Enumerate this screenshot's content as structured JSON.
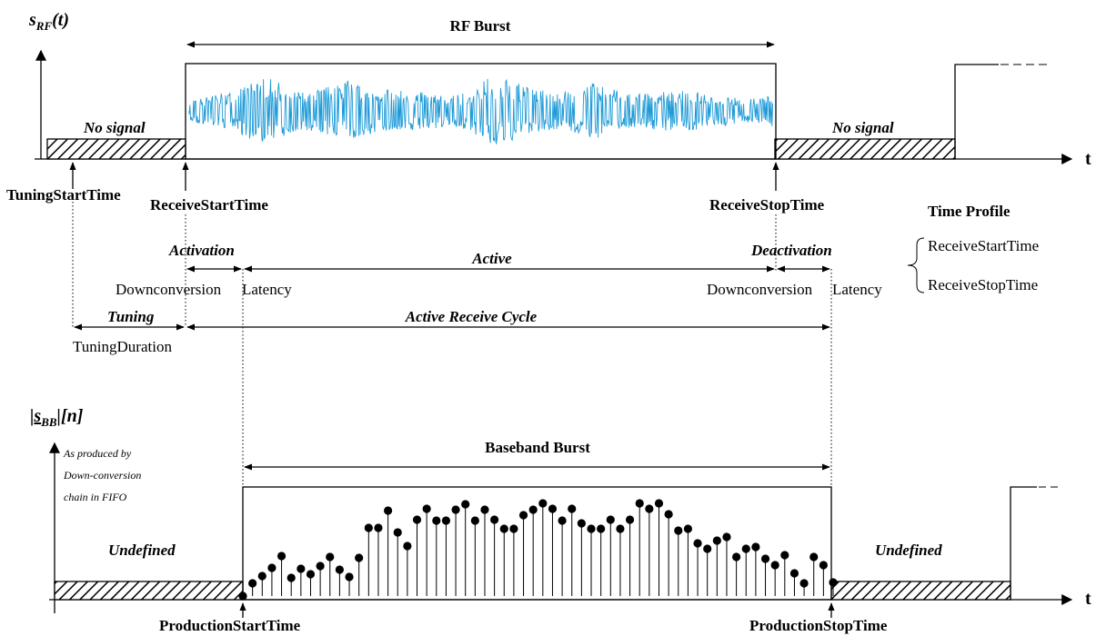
{
  "top": {
    "y_label_main": "s",
    "y_label_sub": "RF",
    "y_label_tail": "(t)",
    "burst_label": "RF Burst",
    "no_signal_left": "No signal",
    "no_signal_right": "No signal",
    "t_axis": "t",
    "tuning_start": "TuningStartTime",
    "receive_start": "ReceiveStartTime",
    "receive_stop": "ReceiveStopTime"
  },
  "profile": {
    "title": "Time Profile",
    "start": "ReceiveStartTime",
    "stop": "ReceiveStopTime"
  },
  "phases": {
    "activation": "Activation",
    "active": "Active",
    "deactivation": "Deactivation",
    "downconv_left": "Downconversion",
    "latency_left": "Latency",
    "downconv_right": "Downconversion",
    "latency_right": "Latency",
    "tuning": "Tuning",
    "tuning_duration": "TuningDuration",
    "active_receive_cycle": "Active Receive Cycle"
  },
  "bottom": {
    "y_label_pre": "|",
    "y_label_main": "s",
    "y_label_sub": "BB",
    "y_label_tail": "|[n]",
    "note_line1": "As produced by",
    "note_line2": "Down-conversion",
    "note_line3": "chain in FIFO",
    "burst_label": "Baseband Burst",
    "undefined_left": "Undefined",
    "undefined_right": "Undefined",
    "t_axis": "t",
    "production_start": "ProductionStartTime",
    "production_stop": "ProductionStopTime"
  },
  "colors": {
    "rf_signal": "#1f9bd7",
    "ink": "#000000"
  }
}
